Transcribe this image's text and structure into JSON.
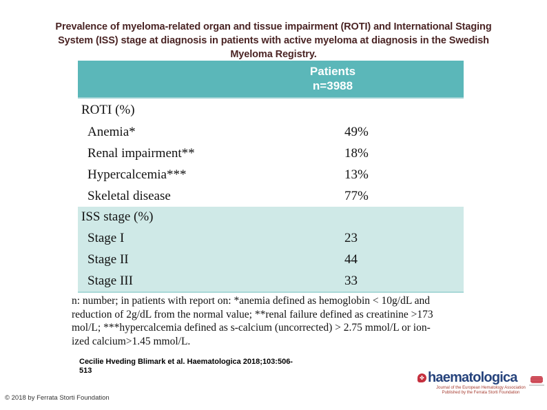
{
  "title": {
    "lines": [
      "Prevalence of myeloma-related organ and tissue impairment (ROTI) and International Staging",
      "System (ISS) stage at diagnosis in patients with active myeloma at diagnosis in the Swedish",
      "Myeloma Registry."
    ]
  },
  "table": {
    "header": {
      "line1": "Patients",
      "line2": "n=3988"
    },
    "sections": [
      {
        "header": "ROTI (%)",
        "rows": [
          {
            "label": "Anemia*",
            "value": "49%"
          },
          {
            "label": "Renal impairment**",
            "value": "18%"
          },
          {
            "label": "Hypercalcemia***",
            "value": "13%"
          },
          {
            "label": "Skeletal disease",
            "value": "77%"
          }
        ]
      },
      {
        "header": "ISS stage (%)",
        "rows": [
          {
            "label": "Stage I",
            "value": "23"
          },
          {
            "label": "Stage II",
            "value": "44"
          },
          {
            "label": "Stage III",
            "value": "33"
          }
        ]
      }
    ]
  },
  "footnote": {
    "lines": [
      "n: number; in patients with report on:  *anemia defined as hemoglobin < 10g/dL and",
      "reduction of 2g/dL from the normal value; **renal failure defined as creatinine >173",
      "mol/L; ***hypercalcemia defined as s-calcium (uncorrected) > 2.75 mmol/L or  ion-",
      "ized calcium>1.45 mmol/L."
    ]
  },
  "citation": {
    "lines": [
      "Cecilie Hveding Blimark et al. Haematologica 2018;103:506-",
      "513"
    ]
  },
  "copyright": "© 2018 by Ferrata Storti Foundation",
  "logo": {
    "wordmark": "haematologica",
    "icon_glyph": "✤",
    "tagline_line1": "Journal of the European Hematology Association",
    "tagline_line2": "Published by the Ferrata Storti Foundation"
  },
  "colors": {
    "table_header_teal": "#5bb7b9",
    "iss_section_teal": "#cfe9e7",
    "title_maroon": "#4a2424",
    "logo_blue": "#26437c",
    "logo_red": "#c5303e"
  }
}
